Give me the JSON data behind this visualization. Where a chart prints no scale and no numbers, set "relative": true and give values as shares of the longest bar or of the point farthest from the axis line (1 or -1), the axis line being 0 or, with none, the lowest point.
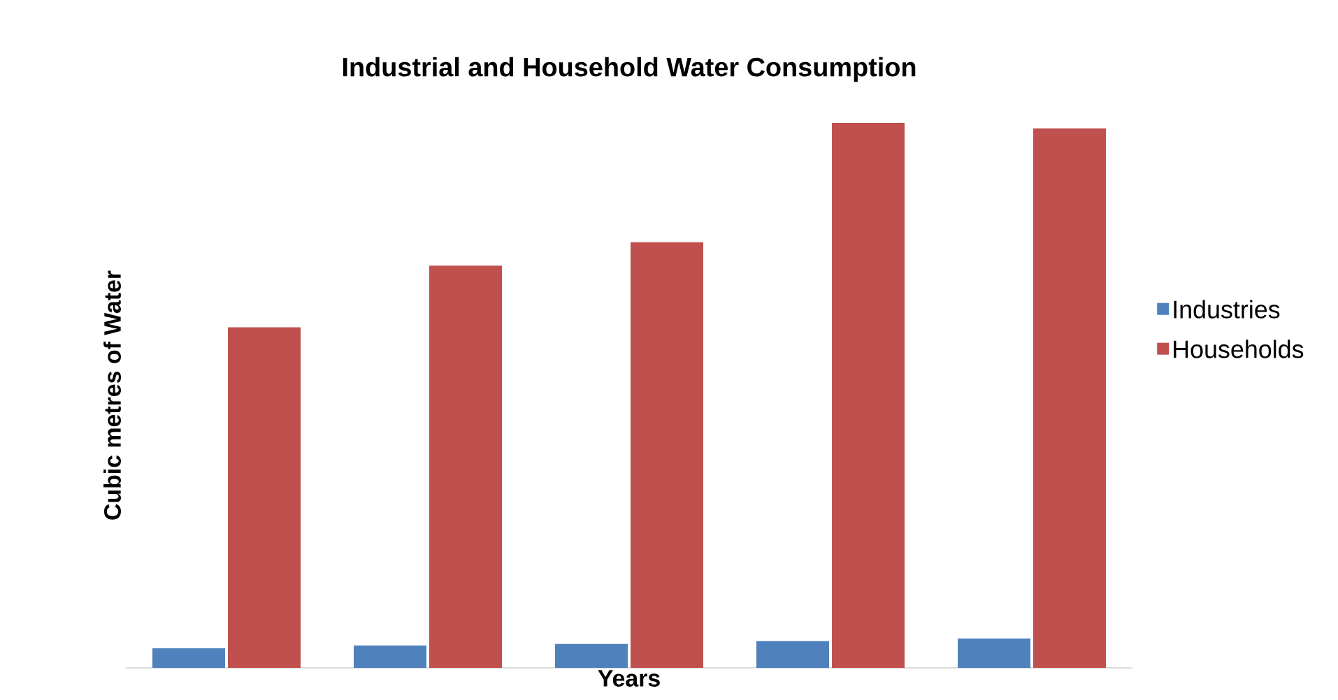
{
  "chart_data": {
    "type": "bar",
    "title": "Industrial and Household Water Consumption",
    "xlabel": "Years",
    "ylabel": "Cubic metres of Water",
    "categories": [
      null,
      null,
      null,
      null,
      null
    ],
    "relative": true,
    "legend": "right",
    "series": [
      {
        "name": "Industries",
        "color": "#4f81bd",
        "values": [
          0.036,
          0.041,
          0.044,
          0.049,
          0.054
        ]
      },
      {
        "name": "Households",
        "color": "#c0504d",
        "values": [
          0.625,
          0.738,
          0.781,
          1,
          0.99
        ]
      }
    ]
  }
}
